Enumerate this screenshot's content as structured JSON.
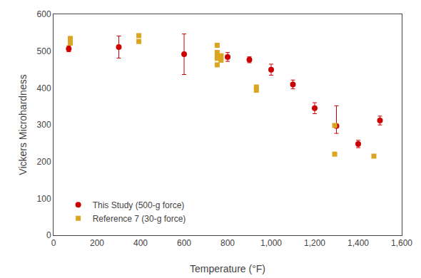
{
  "chart_data": {
    "type": "scatter",
    "x_label": "Temperature (°F)",
    "y_label": "Vickers Microhardness",
    "series": [
      {
        "name": "This Study (500-g force)",
        "color": "#CC0000",
        "marker": "circle",
        "x": [
          70,
          300,
          600,
          800,
          900,
          1000,
          1100,
          1200,
          1300,
          1400,
          1500
        ],
        "values": [
          506.2,
          510.9,
          491.4,
          484.1,
          476.4,
          449.5,
          409.5,
          344.9,
          296.5,
          247.7,
          311.4
        ],
        "error_low": [
          8,
          30,
          55,
          12,
          8,
          15,
          12,
          15,
          20,
          10,
          12
        ],
        "error_high": [
          8,
          30,
          55,
          12,
          8,
          15,
          12,
          15,
          55,
          10,
          12
        ]
      },
      {
        "name": "Reference 7 (30-g force)",
        "color": "#DAA520",
        "marker": "square",
        "x": [
          77,
          77,
          392,
          392,
          752,
          752,
          752,
          752,
          752,
          770,
          770,
          932,
          932,
          1292,
          1292,
          1472
        ],
        "values": [
          534.4,
          521.9,
          541.9,
          526.0,
          515.8,
          496.3,
          485.7,
          480.3,
          462.6,
          487.5,
          475.1,
          402.5,
          393.6,
          298.0,
          220.2,
          214.8
        ]
      }
    ],
    "xlim": [
      0,
      1600
    ],
    "ylim": [
      0,
      600
    ],
    "xticks": [
      0,
      200,
      400,
      600,
      800,
      {
        "value": 1000,
        "label": "1,000"
      },
      {
        "value": 1200,
        "label": "1,200"
      },
      {
        "value": 1400,
        "label": "1,400"
      },
      {
        "value": 1600,
        "label": "1,600"
      }
    ],
    "yticks": [
      0,
      100,
      200,
      300,
      400,
      500,
      600
    ],
    "grid": false,
    "legend": "lower left"
  }
}
